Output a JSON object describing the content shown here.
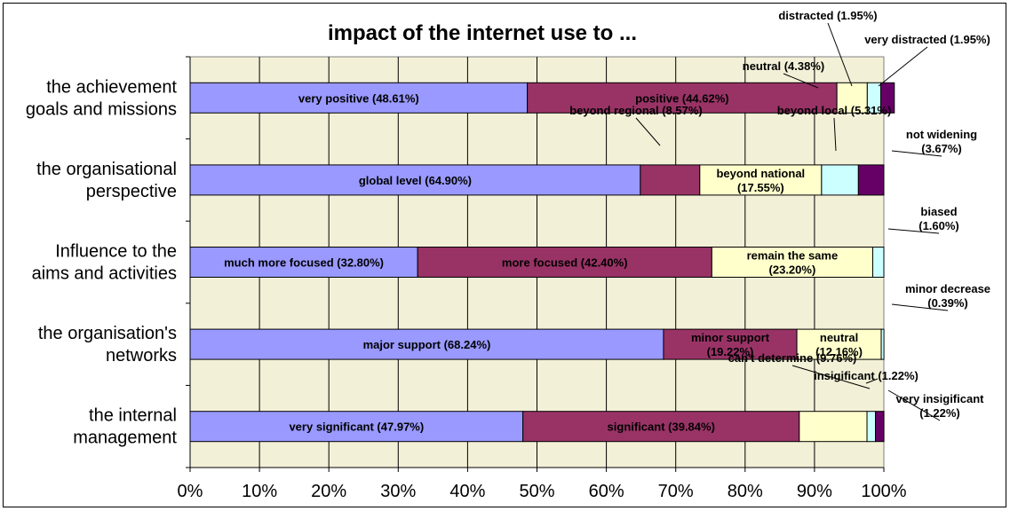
{
  "chart_data": {
    "type": "bar",
    "orientation": "horizontal",
    "stacked": "percent",
    "title": "impact of the internet use to ...",
    "xlim": [
      0,
      100
    ],
    "x_ticks": [
      "0%",
      "10%",
      "20%",
      "30%",
      "40%",
      "50%",
      "60%",
      "70%",
      "80%",
      "90%",
      "100%"
    ],
    "grid": true,
    "colors": {
      "plot_bg": "#f3f0d8",
      "grid": "#000000",
      "segment_palette": [
        "#9999ff",
        "#993366",
        "#ffffcc",
        "#ccffff",
        "#660066"
      ]
    },
    "categories": [
      {
        "label": [
          "the achievement",
          "goals and missions"
        ],
        "segments": [
          {
            "value": 48.61,
            "label": [
              "very positive (48.61%)"
            ]
          },
          {
            "value": 44.62,
            "label": [
              "positive (44.62%)"
            ]
          },
          {
            "value": 4.38,
            "label": [
              "neutral (4.38%)"
            ]
          },
          {
            "value": 1.95,
            "label": [
              "distracted (1.95%)"
            ]
          },
          {
            "value": 1.95,
            "label": [
              "very distracted (1.95%)"
            ]
          }
        ]
      },
      {
        "label": [
          "the organisational",
          "perspective"
        ],
        "segments": [
          {
            "value": 64.9,
            "label": [
              "global level (64.90%)"
            ]
          },
          {
            "value": 8.57,
            "label": [
              "beyond regional (8.57%)"
            ]
          },
          {
            "value": 17.55,
            "label": [
              "beyond national",
              "(17.55%)"
            ]
          },
          {
            "value": 5.31,
            "label": [
              "beyond local (5.31%)"
            ]
          },
          {
            "value": 3.67,
            "label": [
              "not widening",
              "(3.67%)"
            ]
          }
        ]
      },
      {
        "label": [
          "Influence to the",
          "aims and activities"
        ],
        "segments": [
          {
            "value": 32.8,
            "label": [
              "much more focused (32.80%)"
            ]
          },
          {
            "value": 42.4,
            "label": [
              "more focused (42.40%)"
            ]
          },
          {
            "value": 23.2,
            "label": [
              "remain the same",
              "(23.20%)"
            ]
          },
          {
            "value": 1.6,
            "label": [
              "biased",
              "(1.60%)"
            ]
          }
        ]
      },
      {
        "label": [
          "the organisation's",
          "networks"
        ],
        "segments": [
          {
            "value": 68.24,
            "label": [
              "major support (68.24%)"
            ]
          },
          {
            "value": 19.22,
            "label": [
              "minor support",
              "(19.22%)"
            ]
          },
          {
            "value": 12.16,
            "label": [
              "neutral",
              "(12.16%)"
            ]
          },
          {
            "value": 0.39,
            "label": [
              "minor decrease",
              "(0.39%)"
            ]
          }
        ]
      },
      {
        "label": [
          "the internal",
          "management"
        ],
        "segments": [
          {
            "value": 47.97,
            "label": [
              "very significant (47.97%)"
            ]
          },
          {
            "value": 39.84,
            "label": [
              "significant (39.84%)"
            ]
          },
          {
            "value": 9.76,
            "label": [
              "can't determine (9.76%)"
            ]
          },
          {
            "value": 1.22,
            "label": [
              "insigificant (1.22%)"
            ]
          },
          {
            "value": 1.22,
            "label": [
              "very insigificant",
              "(1.22%)"
            ]
          }
        ]
      }
    ]
  }
}
